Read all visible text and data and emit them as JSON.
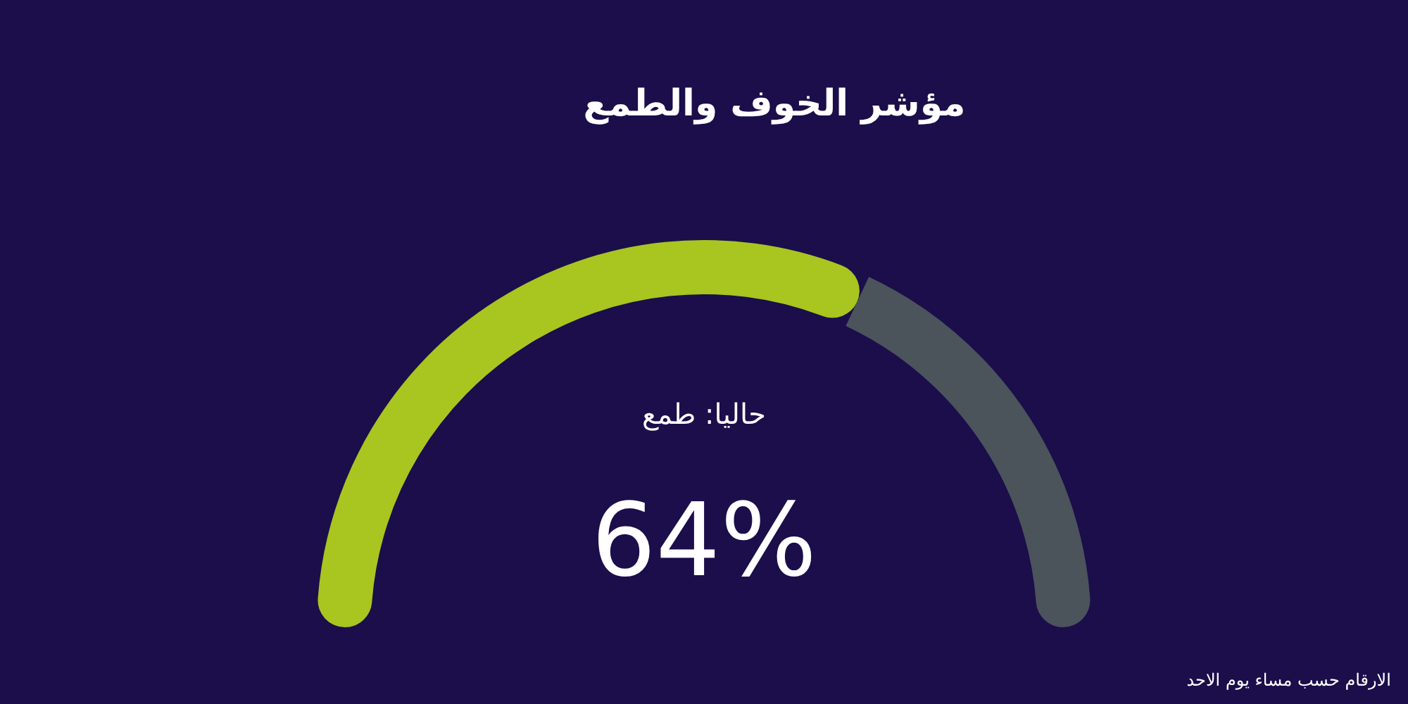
{
  "chart_data": {
    "type": "donut",
    "title": "مؤشر الخوف والطمع",
    "subtitle": "حاليا: طمع",
    "categories": [
      null,
      null
    ],
    "values": [
      64,
      36
    ],
    "colors": [
      "#a9c520",
      "#4b535b"
    ],
    "value_labels": [
      "64%",
      null
    ],
    "annotations": [
      "الارقام حسب مساء يوم الاحد"
    ]
  }
}
